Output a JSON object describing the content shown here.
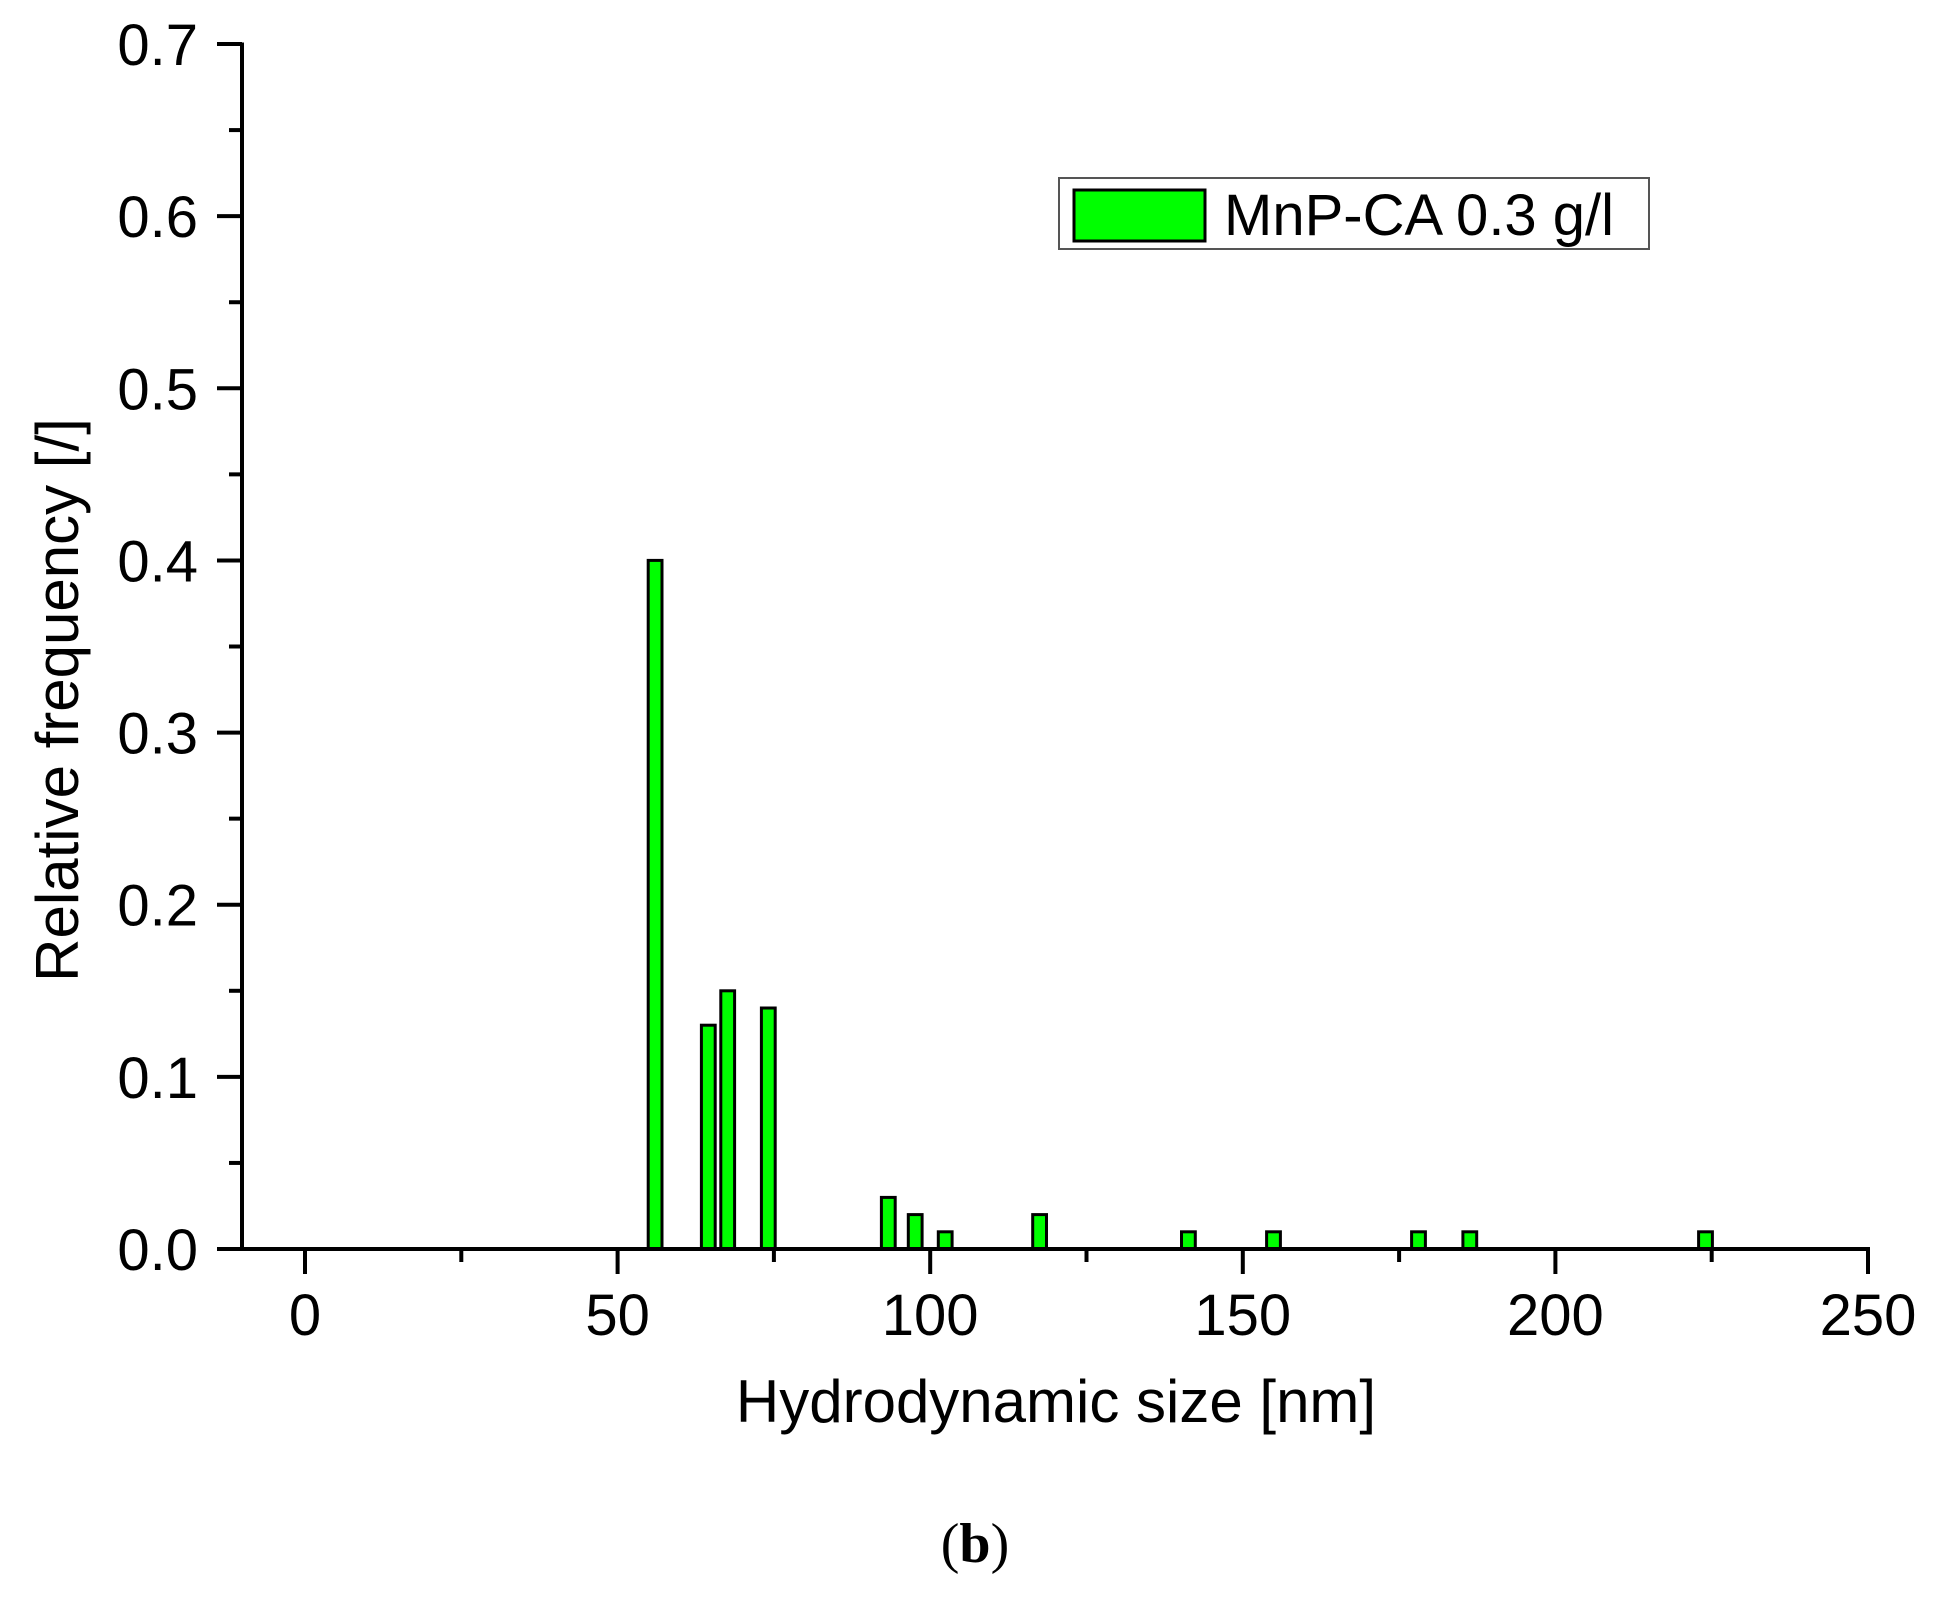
{
  "chart_data": {
    "type": "bar",
    "title": "",
    "panel_label": "(b)",
    "panel_label_parts": {
      "open": "(",
      "letter": "b",
      "close": ")"
    },
    "xlabel": "Hydrodynamic size [nm]",
    "ylabel": "Relative frequency [/]",
    "xlim": [
      -14,
      250
    ],
    "ylim": [
      0,
      0.7
    ],
    "x_ticks": [
      0,
      50,
      100,
      150,
      200,
      250
    ],
    "x_tick_labels": [
      "0",
      "50",
      "100",
      "150",
      "200",
      "250"
    ],
    "x_minor_ticks": [
      25,
      75,
      125,
      175,
      225
    ],
    "y_ticks": [
      0.0,
      0.1,
      0.2,
      0.3,
      0.4,
      0.5,
      0.6,
      0.7
    ],
    "y_tick_labels": [
      "0.0",
      "0.1",
      "0.2",
      "0.3",
      "0.4",
      "0.5",
      "0.6",
      "0.7"
    ],
    "y_minor_ticks": [
      0.05,
      0.15,
      0.25,
      0.35,
      0.45,
      0.55,
      0.65
    ],
    "grid": false,
    "legend_position": "upper right",
    "bar_width": 2.2,
    "series": [
      {
        "name": "MnP-CA 0.3 g/l",
        "color": "#00ff00",
        "edge_color": "#000000",
        "x": [
          56,
          64.5,
          67.6,
          74.1,
          93.3,
          97.6,
          102.4,
          117.5,
          141.3,
          154.9,
          178.1,
          186.3,
          224
        ],
        "values": [
          0.4,
          0.13,
          0.15,
          0.14,
          0.03,
          0.02,
          0.01,
          0.02,
          0.01,
          0.01,
          0.01,
          0.01,
          0.01
        ]
      }
    ]
  }
}
